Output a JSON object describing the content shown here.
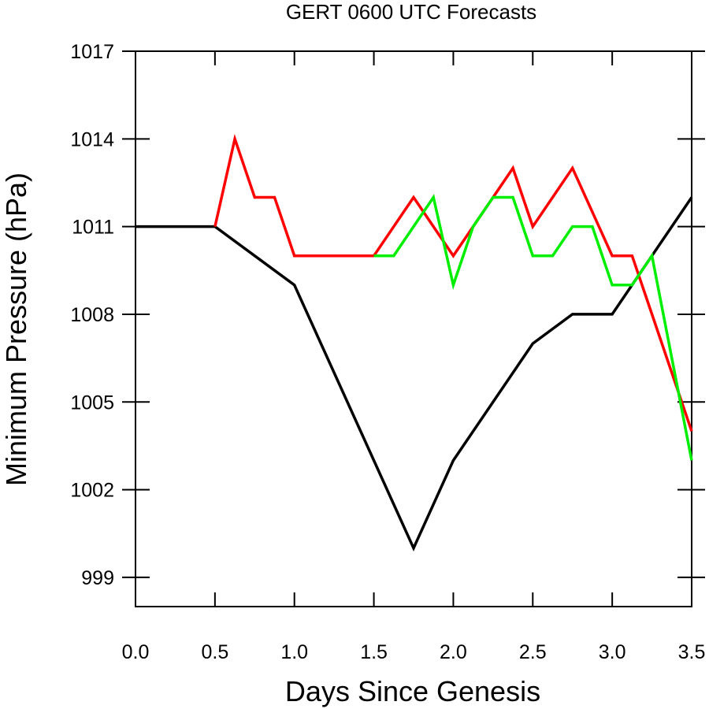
{
  "chart_data": {
    "type": "line",
    "title": "GERT 0600 UTC Forecasts",
    "xlabel": "Days Since Genesis",
    "ylabel": "Minimum Pressure (hPa)",
    "xlim": [
      0,
      3.5
    ],
    "ylim": [
      998,
      1017
    ],
    "xticks": [
      "0.0",
      "0.5",
      "1.0",
      "1.5",
      "2.0",
      "2.5",
      "3.0",
      "3.5"
    ],
    "yticks": [
      "999",
      "1002",
      "1005",
      "1008",
      "1011",
      "1014",
      "1017"
    ],
    "grid": false,
    "series": [
      {
        "color": "#000000",
        "x": [
          0,
          0.5,
          1.0,
          1.75,
          2.0,
          2.5,
          2.75,
          3.0,
          3.5
        ],
        "values": [
          1011,
          1011,
          1009,
          1000,
          1003,
          1007,
          1008,
          1008,
          1012
        ]
      },
      {
        "color": "#ff0000",
        "x": [
          0.5,
          0.625,
          0.75,
          0.875,
          1.0,
          1.5,
          1.75,
          2.0,
          2.125,
          2.25,
          2.375,
          2.5,
          2.75,
          3.0,
          3.125,
          3.5
        ],
        "values": [
          1011,
          1014,
          1012,
          1012,
          1010,
          1010,
          1012,
          1010,
          1011,
          1012,
          1013,
          1011,
          1013,
          1010,
          1010,
          1004
        ]
      },
      {
        "color": "#00ee00",
        "x": [
          1.5,
          1.625,
          1.875,
          2.0,
          2.125,
          2.25,
          2.375,
          2.5,
          2.625,
          2.75,
          2.875,
          3.0,
          3.125,
          3.25,
          3.5
        ],
        "values": [
          1010,
          1010,
          1012,
          1009,
          1011,
          1012,
          1012,
          1010,
          1010,
          1011,
          1011,
          1009,
          1009,
          1010,
          1003
        ]
      }
    ]
  }
}
